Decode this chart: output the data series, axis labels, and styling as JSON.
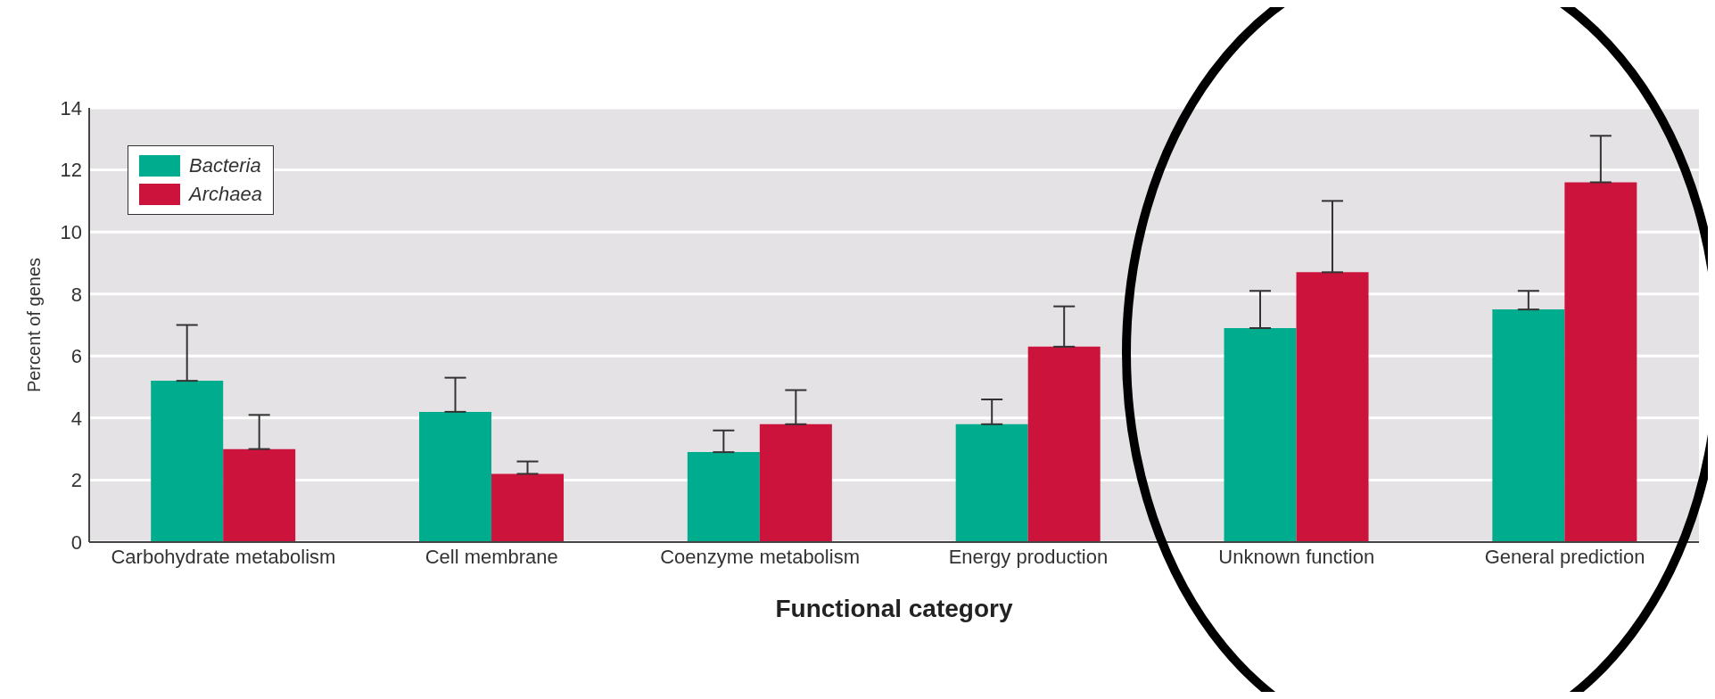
{
  "chart_data": {
    "type": "bar",
    "xlabel": "Functional category",
    "ylabel": "Percent of genes",
    "categories": [
      "Carbohydrate metabolism",
      "Cell membrane",
      "Coenzyme metabolism",
      "Energy production",
      "Unknown function",
      "General prediction"
    ],
    "series": [
      {
        "name": "Bacteria",
        "color": "#00ac8e",
        "values": [
          5.2,
          4.2,
          2.9,
          3.8,
          6.9,
          7.5
        ],
        "errors": [
          [
            5.2,
            7.0
          ],
          [
            4.2,
            5.3
          ],
          [
            2.9,
            3.6
          ],
          [
            3.8,
            4.6
          ],
          [
            6.9,
            8.1
          ],
          [
            7.5,
            8.1
          ]
        ]
      },
      {
        "name": "Archaea",
        "color": "#cc133c",
        "values": [
          3.0,
          2.2,
          3.8,
          6.3,
          8.7,
          11.6
        ],
        "errors": [
          [
            3.0,
            4.1
          ],
          [
            2.2,
            2.6
          ],
          [
            3.8,
            4.9
          ],
          [
            6.3,
            7.6
          ],
          [
            8.7,
            11.0
          ],
          [
            11.6,
            13.1
          ]
        ]
      }
    ],
    "ylim": [
      0,
      14
    ],
    "yticks": [
      0,
      2,
      4,
      6,
      8,
      10,
      12,
      14
    ],
    "grid": "y",
    "legend": "top left"
  }
}
